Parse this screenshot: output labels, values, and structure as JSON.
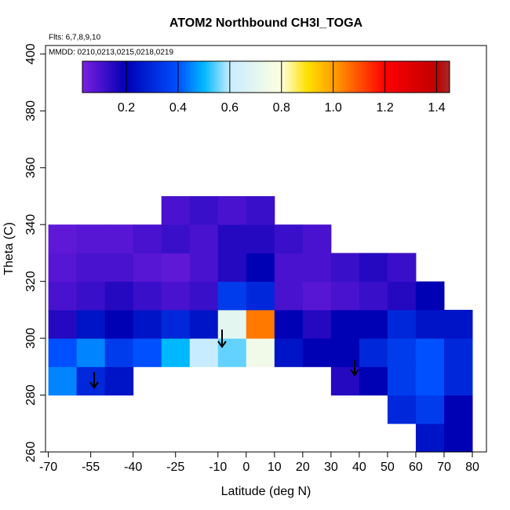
{
  "chart_data": {
    "type": "heatmap",
    "title": "ATOM2 Northbound CH3I_TOGA",
    "subtitle": "Flts: 6,7,8,9,10",
    "annotation": "MMDD: 0210,0213,0215,0218,0219",
    "xlabel": "Latitude (deg N)",
    "ylabel": "Theta (C)",
    "xlim": [
      -71,
      85
    ],
    "ylim": [
      260,
      403
    ],
    "xticks": [
      -70,
      -55,
      -40,
      -25,
      -10,
      0,
      10,
      20,
      30,
      40,
      50,
      60,
      70,
      80
    ],
    "yticks": [
      260,
      280,
      300,
      320,
      340,
      360,
      380,
      400
    ],
    "x_edges": [
      -70,
      -60,
      -50,
      -40,
      -30,
      -20,
      -10,
      0,
      10,
      20,
      30,
      40,
      50,
      60,
      70,
      80
    ],
    "y_edges": [
      260,
      270,
      280,
      290,
      300,
      310,
      320,
      330,
      340,
      350
    ],
    "z": [
      [
        null,
        null,
        null,
        null,
        null,
        null,
        null,
        null,
        null,
        null,
        null,
        null,
        null,
        0.25,
        0.2
      ],
      [
        null,
        null,
        null,
        null,
        null,
        null,
        null,
        null,
        null,
        null,
        null,
        null,
        0.3,
        0.35,
        0.2
      ],
      [
        0.45,
        0.3,
        0.25,
        null,
        null,
        null,
        null,
        null,
        null,
        null,
        0.15,
        0.2,
        0.35,
        0.4,
        0.3
      ],
      [
        0.4,
        0.45,
        0.35,
        0.4,
        0.5,
        0.6,
        0.55,
        0.75,
        0.25,
        0.2,
        0.2,
        0.3,
        0.35,
        0.4,
        0.3
      ],
      [
        0.15,
        0.25,
        0.2,
        0.25,
        0.3,
        0.25,
        0.7,
        1.05,
        0.2,
        0.15,
        0.2,
        0.2,
        0.3,
        0.25,
        0.25
      ],
      [
        0.1,
        0.12,
        0.15,
        0.12,
        0.1,
        0.12,
        0.35,
        0.3,
        0.1,
        0.08,
        0.1,
        0.12,
        0.15,
        0.2,
        null
      ],
      [
        0.08,
        0.1,
        0.1,
        0.08,
        0.07,
        0.1,
        0.15,
        0.2,
        0.1,
        0.1,
        0.12,
        0.15,
        0.12,
        null,
        null
      ],
      [
        0.07,
        0.08,
        0.08,
        0.1,
        0.12,
        0.1,
        0.15,
        0.15,
        0.12,
        0.1,
        null,
        null,
        null,
        null,
        null
      ],
      [
        null,
        null,
        null,
        null,
        0.1,
        0.12,
        0.1,
        0.12,
        null,
        null,
        null,
        null,
        null,
        null,
        null
      ]
    ],
    "clim": [
      0.03,
      1.45
    ],
    "cticks": [
      0.2,
      0.4,
      0.6,
      0.8,
      1.0,
      1.2,
      1.4
    ],
    "colorscale": [
      [
        0.03,
        "#7b1fe0"
      ],
      [
        0.2,
        "#0000b4"
      ],
      [
        0.4,
        "#0050ff"
      ],
      [
        0.5,
        "#00b8ff"
      ],
      [
        0.6,
        "#c8ecff"
      ],
      [
        0.8,
        "#ffffe0"
      ],
      [
        0.9,
        "#ffe000"
      ],
      [
        1.0,
        "#ffa000"
      ],
      [
        1.2,
        "#ff0000"
      ],
      [
        1.4,
        "#c00000"
      ],
      [
        1.45,
        "#a52a2a"
      ]
    ]
  }
}
